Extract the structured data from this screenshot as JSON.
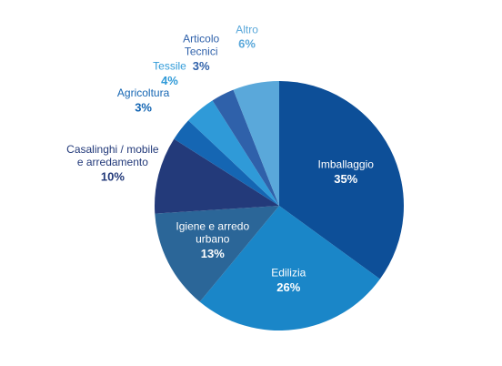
{
  "chart_data": {
    "type": "pie",
    "categories": [
      "Imballaggio",
      "Edilizia",
      "Igiene e arredo\nurbano",
      "Casalinghi / mobile\ne arredamento",
      "Agricoltura",
      "Tessile",
      "Articolo\nTecnici",
      "Altro"
    ],
    "values": [
      35,
      26,
      13,
      10,
      3,
      4,
      3,
      6
    ],
    "value_labels": [
      "35%",
      "26%",
      "13%",
      "10%",
      "3%",
      "4%",
      "3%",
      "6%"
    ],
    "colors": [
      "#0d4f98",
      "#1a86c8",
      "#2b6698",
      "#233a7a",
      "#1566b3",
      "#2f9ad8",
      "#2f61aa",
      "#5aa8da"
    ]
  }
}
